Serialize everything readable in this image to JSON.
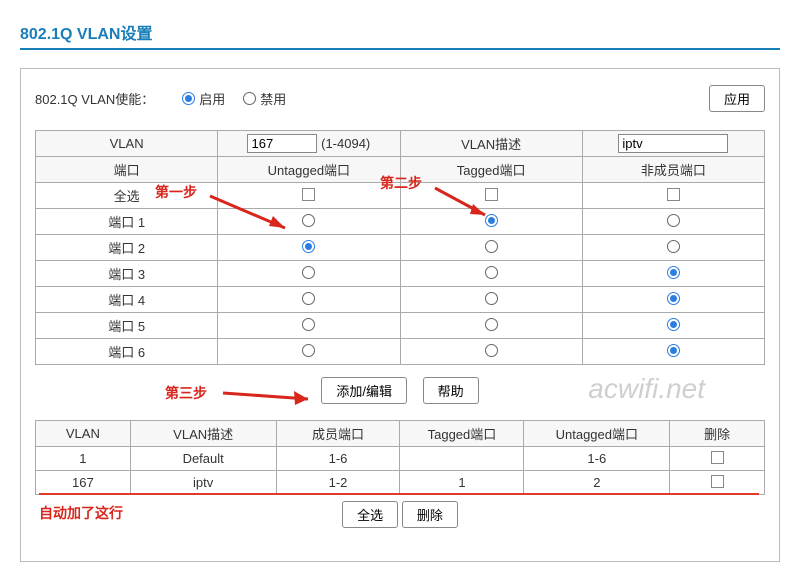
{
  "title": "802.1Q VLAN设置",
  "enable": {
    "label": "802.1Q VLAN使能：",
    "options": [
      "启用",
      "禁用"
    ],
    "selected": "启用",
    "apply": "应用"
  },
  "config": {
    "headers": {
      "vlan": "VLAN",
      "desc": "VLAN描述"
    },
    "vlan_id": "167",
    "vlan_range": "(1-4094)",
    "vlan_desc": "iptv",
    "columns": {
      "port": "端口",
      "untagged": "Untagged端口",
      "tagged": "Tagged端口",
      "nonmember": "非成员端口"
    },
    "select_all": "全选",
    "ports": [
      {
        "name": "端口 1",
        "sel": "tagged"
      },
      {
        "name": "端口 2",
        "sel": "untagged"
      },
      {
        "name": "端口 3",
        "sel": "nonmember"
      },
      {
        "name": "端口 4",
        "sel": "nonmember"
      },
      {
        "name": "端口 5",
        "sel": "nonmember"
      },
      {
        "name": "端口 6",
        "sel": "nonmember"
      }
    ],
    "buttons": {
      "add_edit": "添加/编辑",
      "help": "帮助"
    }
  },
  "list": {
    "headers": {
      "vlan": "VLAN",
      "desc": "VLAN描述",
      "member": "成员端口",
      "tagged": "Tagged端口",
      "untagged": "Untagged端口",
      "delete": "删除"
    },
    "rows": [
      {
        "vlan": "1",
        "desc": "Default",
        "member": "1-6",
        "tagged": "",
        "untagged": "1-6"
      },
      {
        "vlan": "167",
        "desc": "iptv",
        "member": "1-2",
        "tagged": "1",
        "untagged": "2"
      }
    ],
    "buttons": {
      "select_all": "全选",
      "delete": "删除"
    }
  },
  "annotations": {
    "step1": "第一步",
    "step2": "第二步",
    "step3": "第三步",
    "auto_added": "自动加了这行",
    "watermark": "acwifi.net"
  },
  "colors": {
    "accent": "#1a7fb8",
    "radio_on": "#2b7de0",
    "annotation_red": "#d8261c",
    "underline_red": "#e03a2d",
    "watermark_gray": "#d0cfcf"
  }
}
